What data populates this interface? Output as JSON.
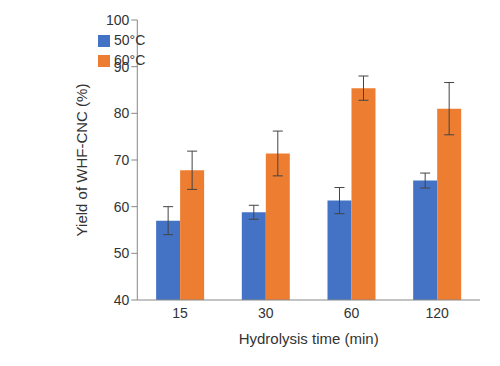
{
  "chart_data": {
    "type": "bar",
    "x_label": "Hydrolysis time (min)",
    "y_label": "Yield of WHF-CNC (%)",
    "categories": [
      "15",
      "30",
      "60",
      "120"
    ],
    "series": [
      {
        "name": "50°C",
        "color": "#4472c4",
        "values": [
          57.0,
          58.8,
          61.3,
          65.6
        ],
        "errors": [
          3.0,
          1.5,
          2.8,
          1.6
        ]
      },
      {
        "name": "60°C",
        "color": "#ed7d31",
        "values": [
          67.8,
          71.4,
          85.4,
          81.0
        ],
        "errors": [
          4.1,
          4.8,
          2.6,
          5.6
        ]
      }
    ],
    "ylim": [
      40,
      100
    ],
    "yticks": [
      40,
      50,
      60,
      70,
      80,
      90,
      100
    ],
    "grid": false,
    "legend": "upper left"
  }
}
